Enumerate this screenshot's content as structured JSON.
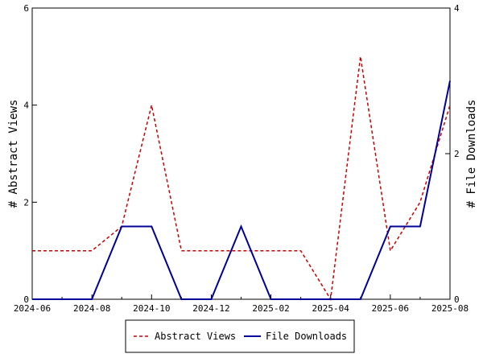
{
  "chart_data": {
    "type": "line",
    "title": "",
    "x": [
      "2024-06",
      "2024-07",
      "2024-08",
      "2024-09",
      "2024-10",
      "2024-11",
      "2024-12",
      "2025-01",
      "2025-02",
      "2025-03",
      "2025-04",
      "2025-05",
      "2025-06",
      "2025-07",
      "2025-08"
    ],
    "x_ticks": [
      "2024-06",
      "2024-08",
      "2024-10",
      "2024-12",
      "2025-02",
      "2025-04",
      "2025-06",
      "2025-08"
    ],
    "xlim": [
      "2024-06",
      "2025-08"
    ],
    "left_axis": {
      "label": "# Abstract Views",
      "ylim": [
        0,
        6
      ],
      "ticks": [
        "0",
        "2",
        "4",
        "6"
      ]
    },
    "right_axis": {
      "label": "# File Downloads",
      "ylim": [
        0,
        4
      ],
      "ticks": [
        "0",
        "2",
        "4"
      ]
    },
    "series": [
      {
        "name": "Abstract Views",
        "axis": "left",
        "color": "#cc0000",
        "style": "dashed",
        "values": [
          1,
          1,
          1,
          1.5,
          4,
          1,
          1,
          1,
          1,
          1,
          0,
          5,
          1,
          2,
          4
        ]
      },
      {
        "name": "File Downloads",
        "axis": "right",
        "color": "#000099",
        "style": "solid",
        "values": [
          0,
          0,
          0,
          1,
          1,
          0,
          0,
          1,
          0,
          0,
          0,
          0,
          1,
          1,
          3
        ]
      }
    ],
    "grid": false,
    "legend": {
      "position": "bottom-center"
    }
  }
}
